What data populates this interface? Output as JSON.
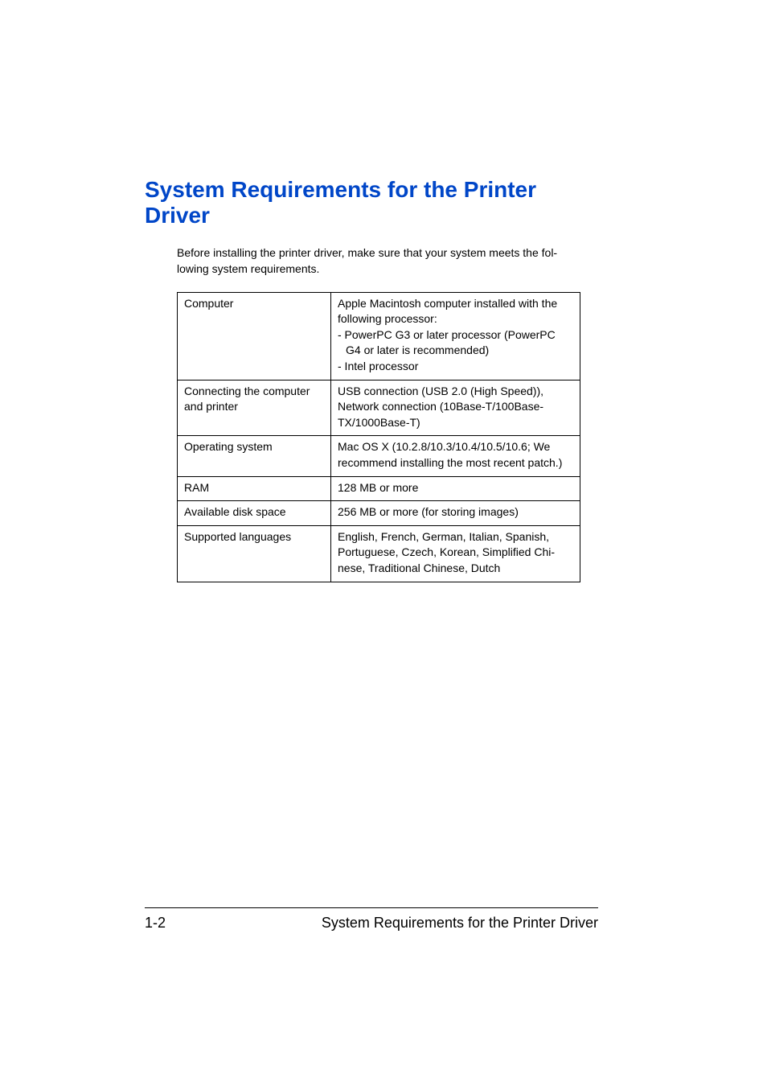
{
  "heading": "System Requirements for the Printer Driver",
  "intro_line1": "Before installing the printer driver, make sure that your system meets the fol-",
  "intro_line2": "lowing system requirements.",
  "table": {
    "rows": [
      {
        "key": "Computer",
        "val_lines": [
          "Apple Macintosh computer installed with the following processor:",
          "- PowerPC G3 or later processor (PowerPC",
          "  G4 or later is recommended)",
          "- Intel processor"
        ]
      },
      {
        "key": "Connecting the computer and printer",
        "val_lines": [
          "USB connection (USB 2.0 (High Speed)), Network connection (10Base-T/100Base-TX/1000Base-T)"
        ]
      },
      {
        "key": "Operating system",
        "val_lines": [
          "Mac OS X (10.2.8/10.3/10.4/10.5/10.6; We recommend installing the most recent patch.)"
        ]
      },
      {
        "key": "RAM",
        "val_lines": [
          "128 MB or more"
        ]
      },
      {
        "key": "Available disk space",
        "val_lines": [
          "256 MB or more (for storing images)"
        ]
      },
      {
        "key": "Supported languages",
        "val_lines": [
          "English, French, German, Italian, Spanish, Portuguese, Czech, Korean, Simplified Chi-",
          "nese, Traditional Chinese, Dutch"
        ]
      }
    ]
  },
  "footer": {
    "page_number": "1-2",
    "title": "System Requirements for the Printer Driver"
  },
  "colors": {
    "heading": "#0046c8",
    "text": "#000000",
    "border": "#000000",
    "background": "#ffffff"
  }
}
